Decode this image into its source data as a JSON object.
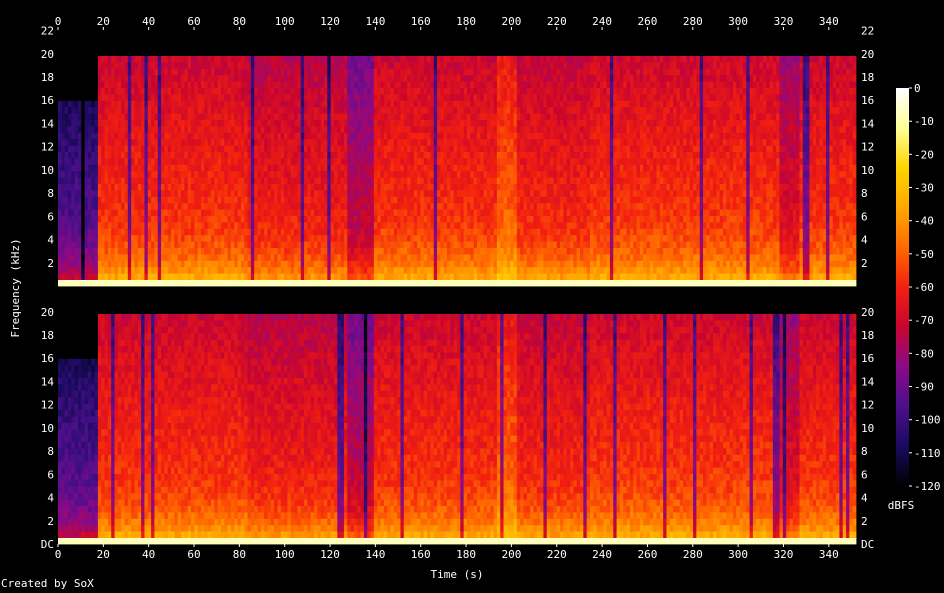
{
  "credit": "Created by SoX",
  "colors": {
    "background": "#000000",
    "text": "#ffffff",
    "scale": [
      "#000000",
      "#1a0a5e",
      "#4b0f8a",
      "#8a0a88",
      "#c8052f",
      "#f3200f",
      "#ff6a00",
      "#ffa800",
      "#ffd400",
      "#ffff99",
      "#ffffff"
    ]
  },
  "chart_data": {
    "type": "heatmap",
    "title": "",
    "xlabel": "Time (s)",
    "ylabel": "Frequency (kHz)",
    "xlim": [
      0,
      352
    ],
    "ylim": [
      0,
      22.05
    ],
    "x_ticks": [
      "0",
      "20",
      "40",
      "60",
      "80",
      "100",
      "120",
      "140",
      "160",
      "180",
      "200",
      "220",
      "240",
      "260",
      "280",
      "300",
      "320",
      "340"
    ],
    "y_ticks_upper": [
      "2",
      "4",
      "6",
      "8",
      "10",
      "12",
      "14",
      "16",
      "18",
      "20",
      "22"
    ],
    "y_ticks_lower": [
      "DC",
      "2",
      "4",
      "6",
      "8",
      "10",
      "12",
      "14",
      "16",
      "18",
      "20"
    ],
    "channels": 2,
    "colorbar": {
      "label": "dBFS",
      "range": [
        -120,
        0
      ],
      "ticks": [
        "0",
        "-10",
        "-20",
        "-30",
        "-40",
        "-50",
        "-60",
        "-70",
        "-80",
        "-90",
        "-100",
        "-110",
        "-120"
      ]
    },
    "segments": [
      {
        "start": 0,
        "end": 18,
        "level": -95,
        "bandwidth_khz": 16
      },
      {
        "start": 18,
        "end": 84,
        "level": -58,
        "bandwidth_khz": 20
      },
      {
        "start": 84,
        "end": 127,
        "level": -62,
        "bandwidth_khz": 20
      },
      {
        "start": 127,
        "end": 139,
        "level": -75,
        "bandwidth_khz": 20
      },
      {
        "start": 139,
        "end": 193,
        "level": -58,
        "bandwidth_khz": 20
      },
      {
        "start": 193,
        "end": 203,
        "level": -50,
        "bandwidth_khz": 20
      },
      {
        "start": 203,
        "end": 235,
        "level": -60,
        "bandwidth_khz": 20
      },
      {
        "start": 235,
        "end": 318,
        "level": -57,
        "bandwidth_khz": 20
      },
      {
        "start": 318,
        "end": 327,
        "level": -68,
        "bandwidth_khz": 20
      },
      {
        "start": 327,
        "end": 352,
        "level": -58,
        "bandwidth_khz": 20
      }
    ]
  }
}
